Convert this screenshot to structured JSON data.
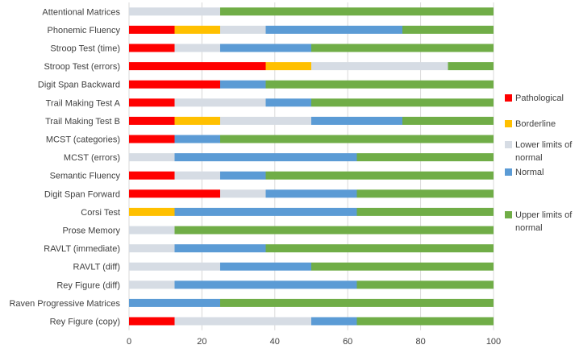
{
  "chart_data": {
    "type": "bar",
    "orientation": "horizontal",
    "stacked": true,
    "categories": [
      "Attentional Matrices",
      "Phonemic Fluency",
      "Stroop Test (time)",
      "Stroop Test (errors)",
      "Digit Span Backward",
      "Trail Making Test A",
      "Trail Making Test B",
      "MCST (categories)",
      "MCST (errors)",
      "Semantic Fluency",
      "Digit Span Forward",
      "Corsi Test",
      "Prose Memory",
      "RAVLT (immediate)",
      "RAVLT (diff)",
      "Rey Figure (diff)",
      "Raven Progressive Matrices",
      "Rey Figure (copy)"
    ],
    "series": [
      {
        "name": "Pathological",
        "color": "#ff0000",
        "values": [
          0,
          12.5,
          12.5,
          37.5,
          25,
          12.5,
          12.5,
          12.5,
          0,
          12.5,
          25,
          0,
          0,
          0,
          0,
          0,
          0,
          12.5
        ]
      },
      {
        "name": "Borderline",
        "color": "#ffc000",
        "values": [
          0,
          12.5,
          0,
          12.5,
          0,
          0,
          12.5,
          0,
          0,
          0,
          0,
          12.5,
          0,
          0,
          0,
          0,
          0,
          0
        ]
      },
      {
        "name": "Lower limits of normal",
        "color": "#d6dce4",
        "values": [
          25,
          12.5,
          12.5,
          37.5,
          0,
          25,
          25,
          0,
          12.5,
          12.5,
          12.5,
          0,
          12.5,
          12.5,
          25,
          12.5,
          0,
          37.5
        ]
      },
      {
        "name": "Normal",
        "color": "#5b9bd5",
        "values": [
          0,
          37.5,
          25,
          0,
          12.5,
          12.5,
          25,
          12.5,
          50,
          12.5,
          25,
          50,
          0,
          25,
          25,
          50,
          25,
          12.5
        ]
      },
      {
        "name": "Upper limits of normal",
        "color": "#70ad47",
        "values": [
          75,
          25,
          50,
          12.5,
          62.5,
          50,
          25,
          75,
          37.5,
          62.5,
          37.5,
          37.5,
          87.5,
          62.5,
          50,
          37.5,
          75,
          37.5
        ]
      }
    ],
    "xlim": [
      0,
      100
    ],
    "xticks": [
      0,
      20,
      40,
      60,
      80,
      100
    ],
    "xtick_labels": [
      "0",
      "20",
      "40",
      "60",
      "80",
      "100"
    ],
    "grid": "vertical",
    "legend_position": "right",
    "title": "",
    "xlabel": "",
    "ylabel": ""
  }
}
